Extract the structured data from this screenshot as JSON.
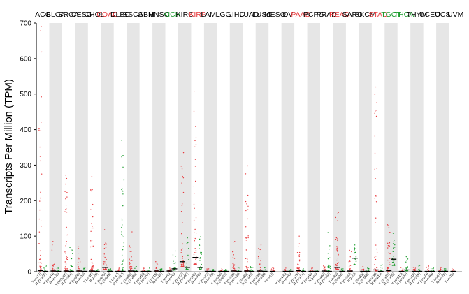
{
  "chart_data": {
    "type": "scatter",
    "title": "",
    "xlabel": "",
    "ylabel": "Transcripts Per Million (TPM)",
    "ylim": [
      0,
      700
    ],
    "yticks": [
      0,
      100,
      200,
      300,
      400,
      500,
      600,
      700
    ],
    "grid": false,
    "legend": "none",
    "colors": {
      "tumor": "#e8393c",
      "normal": "#1a9c2c",
      "median": "#000000",
      "band": "#e6e6e6",
      "plain": "#000000"
    },
    "cancers": [
      {
        "name": "ACC",
        "color": "plain",
        "tumor_label": "T (n=77)",
        "normal_label": "N (n=128)",
        "tumor_median": 3,
        "normal_median": 1,
        "tumor_max": 690,
        "normal_max": 18
      },
      {
        "name": "BLCA",
        "color": "plain",
        "tumor_label": "T (n=404)",
        "normal_label": "N (n=28)",
        "tumor_median": 2,
        "normal_median": 1,
        "tumor_max": 85,
        "normal_max": 10
      },
      {
        "name": "BRCA",
        "color": "plain",
        "tumor_label": "T (n=1085)",
        "normal_label": "N (n=291)",
        "tumor_median": 2,
        "normal_median": 1,
        "tumor_max": 272,
        "normal_max": 68
      },
      {
        "name": "CESC",
        "color": "plain",
        "tumor_label": "T (n=306)",
        "normal_label": "N (n=13)",
        "tumor_median": 2,
        "normal_median": 1,
        "tumor_max": 70,
        "normal_max": 12
      },
      {
        "name": "CHOL",
        "color": "plain",
        "tumor_label": "T (n=36)",
        "normal_label": "N (n=9)",
        "tumor_median": 2,
        "normal_median": 1,
        "tumor_max": 268,
        "normal_max": 6
      },
      {
        "name": "COAD",
        "color": "tumor",
        "tumor_label": "T (n=275)",
        "normal_label": "N (n=349)",
        "tumor_median": 12,
        "normal_median": 1,
        "tumor_max": 118,
        "normal_max": 8
      },
      {
        "name": "DLBC",
        "color": "plain",
        "tumor_label": "T (n=47)",
        "normal_label": "N (n=337)",
        "tumor_median": 1,
        "normal_median": 1,
        "tumor_max": 10,
        "normal_max": 370
      },
      {
        "name": "ESCA",
        "color": "plain",
        "tumor_label": "T (n=182)",
        "normal_label": "N (n=286)",
        "tumor_median": 2,
        "normal_median": 1,
        "tumor_max": 112,
        "normal_max": 14
      },
      {
        "name": "GBM",
        "color": "plain",
        "tumor_label": "T (n=163)",
        "normal_label": "N (n=207)",
        "tumor_median": 1,
        "normal_median": 1,
        "tumor_max": 12,
        "normal_max": 10
      },
      {
        "name": "HNSC",
        "color": "plain",
        "tumor_label": "T (n=519)",
        "normal_label": "N (n=44)",
        "tumor_median": 2,
        "normal_median": 1,
        "tumor_max": 28,
        "normal_max": 8
      },
      {
        "name": "KICH",
        "color": "normal",
        "tumor_label": "T (n=66)",
        "normal_label": "N (n=53)",
        "tumor_median": 2,
        "normal_median": 8,
        "tumor_max": 10,
        "normal_max": 58
      },
      {
        "name": "KIRC",
        "color": "plain",
        "tumor_label": "T (n=523)",
        "normal_label": "N (n=100)",
        "tumor_median": 28,
        "normal_median": 12,
        "tumor_max": 335,
        "normal_max": 95
      },
      {
        "name": "KIRP",
        "color": "tumor",
        "tumor_label": "T (n=286)",
        "normal_label": "N (n=60)",
        "tumor_median": 40,
        "normal_median": 12,
        "tumor_max": 508,
        "normal_max": 98
      },
      {
        "name": "LAML",
        "color": "plain",
        "tumor_label": "T (n=173)",
        "normal_label": "N (n=70)",
        "tumor_median": 1,
        "normal_median": 1,
        "tumor_max": 8,
        "normal_max": 6
      },
      {
        "name": "LGG",
        "color": "plain",
        "tumor_label": "T (n=518)",
        "normal_label": "N (n=207)",
        "tumor_median": 1,
        "normal_median": 1,
        "tumor_max": 8,
        "normal_max": 6
      },
      {
        "name": "LIHC",
        "color": "plain",
        "tumor_label": "T (n=369)",
        "normal_label": "N (n=160)",
        "tumor_median": 2,
        "normal_median": 1,
        "tumor_max": 85,
        "normal_max": 12
      },
      {
        "name": "LUAD",
        "color": "plain",
        "tumor_label": "T (n=483)",
        "normal_label": "N (n=347)",
        "tumor_median": 2,
        "normal_median": 1,
        "tumor_max": 298,
        "normal_max": 14
      },
      {
        "name": "LUSC",
        "color": "plain",
        "tumor_label": "T (n=486)",
        "normal_label": "N (n=338)",
        "tumor_median": 2,
        "normal_median": 1,
        "tumor_max": 75,
        "normal_max": 12
      },
      {
        "name": "MESO",
        "color": "plain",
        "tumor_label": "T (n=87)",
        "normal_label": "",
        "tumor_median": 1,
        "normal_median": 0,
        "tumor_max": 12,
        "normal_max": 0
      },
      {
        "name": "OV",
        "color": "plain",
        "tumor_label": "T (n=426)",
        "normal_label": "N (n=88)",
        "tumor_median": 1,
        "normal_median": 1,
        "tumor_max": 10,
        "normal_max": 6
      },
      {
        "name": "PAAD",
        "color": "tumor",
        "tumor_label": "T (n=179)",
        "normal_label": "N (n=171)",
        "tumor_median": 3,
        "normal_median": 1,
        "tumor_max": 100,
        "normal_max": 8
      },
      {
        "name": "PCPG",
        "color": "plain",
        "tumor_label": "T (n=182)",
        "normal_label": "N (n=3)",
        "tumor_median": 1,
        "normal_median": 1,
        "tumor_max": 10,
        "normal_max": 4
      },
      {
        "name": "PRAD",
        "color": "plain",
        "tumor_label": "T (n=492)",
        "normal_label": "N (n=152)",
        "tumor_median": 2,
        "normal_median": 1,
        "tumor_max": 16,
        "normal_max": 110
      },
      {
        "name": "READ",
        "color": "tumor",
        "tumor_label": "T (n=92)",
        "normal_label": "N (n=318)",
        "tumor_median": 12,
        "normal_median": 1,
        "tumor_max": 168,
        "normal_max": 8
      },
      {
        "name": "SARC",
        "color": "plain",
        "tumor_label": "T (n=262)",
        "normal_label": "N (n=2)",
        "tumor_median": 2,
        "normal_median": 38,
        "tumor_max": 60,
        "normal_max": 75
      },
      {
        "name": "SKCM",
        "color": "plain",
        "tumor_label": "T (n=461)",
        "normal_label": "N (n=558)",
        "tumor_median": 1,
        "normal_median": 1,
        "tumor_max": 14,
        "normal_max": 10
      },
      {
        "name": "STAD",
        "color": "tumor",
        "tumor_label": "T (n=408)",
        "normal_label": "N (n=211)",
        "tumor_median": 5,
        "normal_median": 1,
        "tumor_max": 520,
        "normal_max": 20
      },
      {
        "name": "TGCT",
        "color": "normal",
        "tumor_label": "T (n=137)",
        "normal_label": "N (n=165)",
        "tumor_median": 3,
        "normal_median": 35,
        "tumor_max": 132,
        "normal_max": 108
      },
      {
        "name": "THCA",
        "color": "normal",
        "tumor_label": "T (n=512)",
        "normal_label": "N (n=337)",
        "tumor_median": 1,
        "normal_median": 5,
        "tumor_max": 12,
        "normal_max": 42
      },
      {
        "name": "THYM",
        "color": "plain",
        "tumor_label": "T (n=118)",
        "normal_label": "N (n=339)",
        "tumor_median": 1,
        "normal_median": 1,
        "tumor_max": 12,
        "normal_max": 18
      },
      {
        "name": "UCEC",
        "color": "plain",
        "tumor_label": "T (n=174)",
        "normal_label": "N (n=91)",
        "tumor_median": 1,
        "normal_median": 1,
        "tumor_max": 18,
        "normal_max": 10
      },
      {
        "name": "UCS",
        "color": "plain",
        "tumor_label": "T (n=57)",
        "normal_label": "N (n=78)",
        "tumor_median": 1,
        "normal_median": 1,
        "tumor_max": 12,
        "normal_max": 8
      },
      {
        "name": "UVM",
        "color": "plain",
        "tumor_label": "T (n=79)",
        "normal_label": "",
        "tumor_median": 1,
        "normal_median": 0,
        "tumor_max": 8,
        "normal_max": 0
      }
    ]
  }
}
